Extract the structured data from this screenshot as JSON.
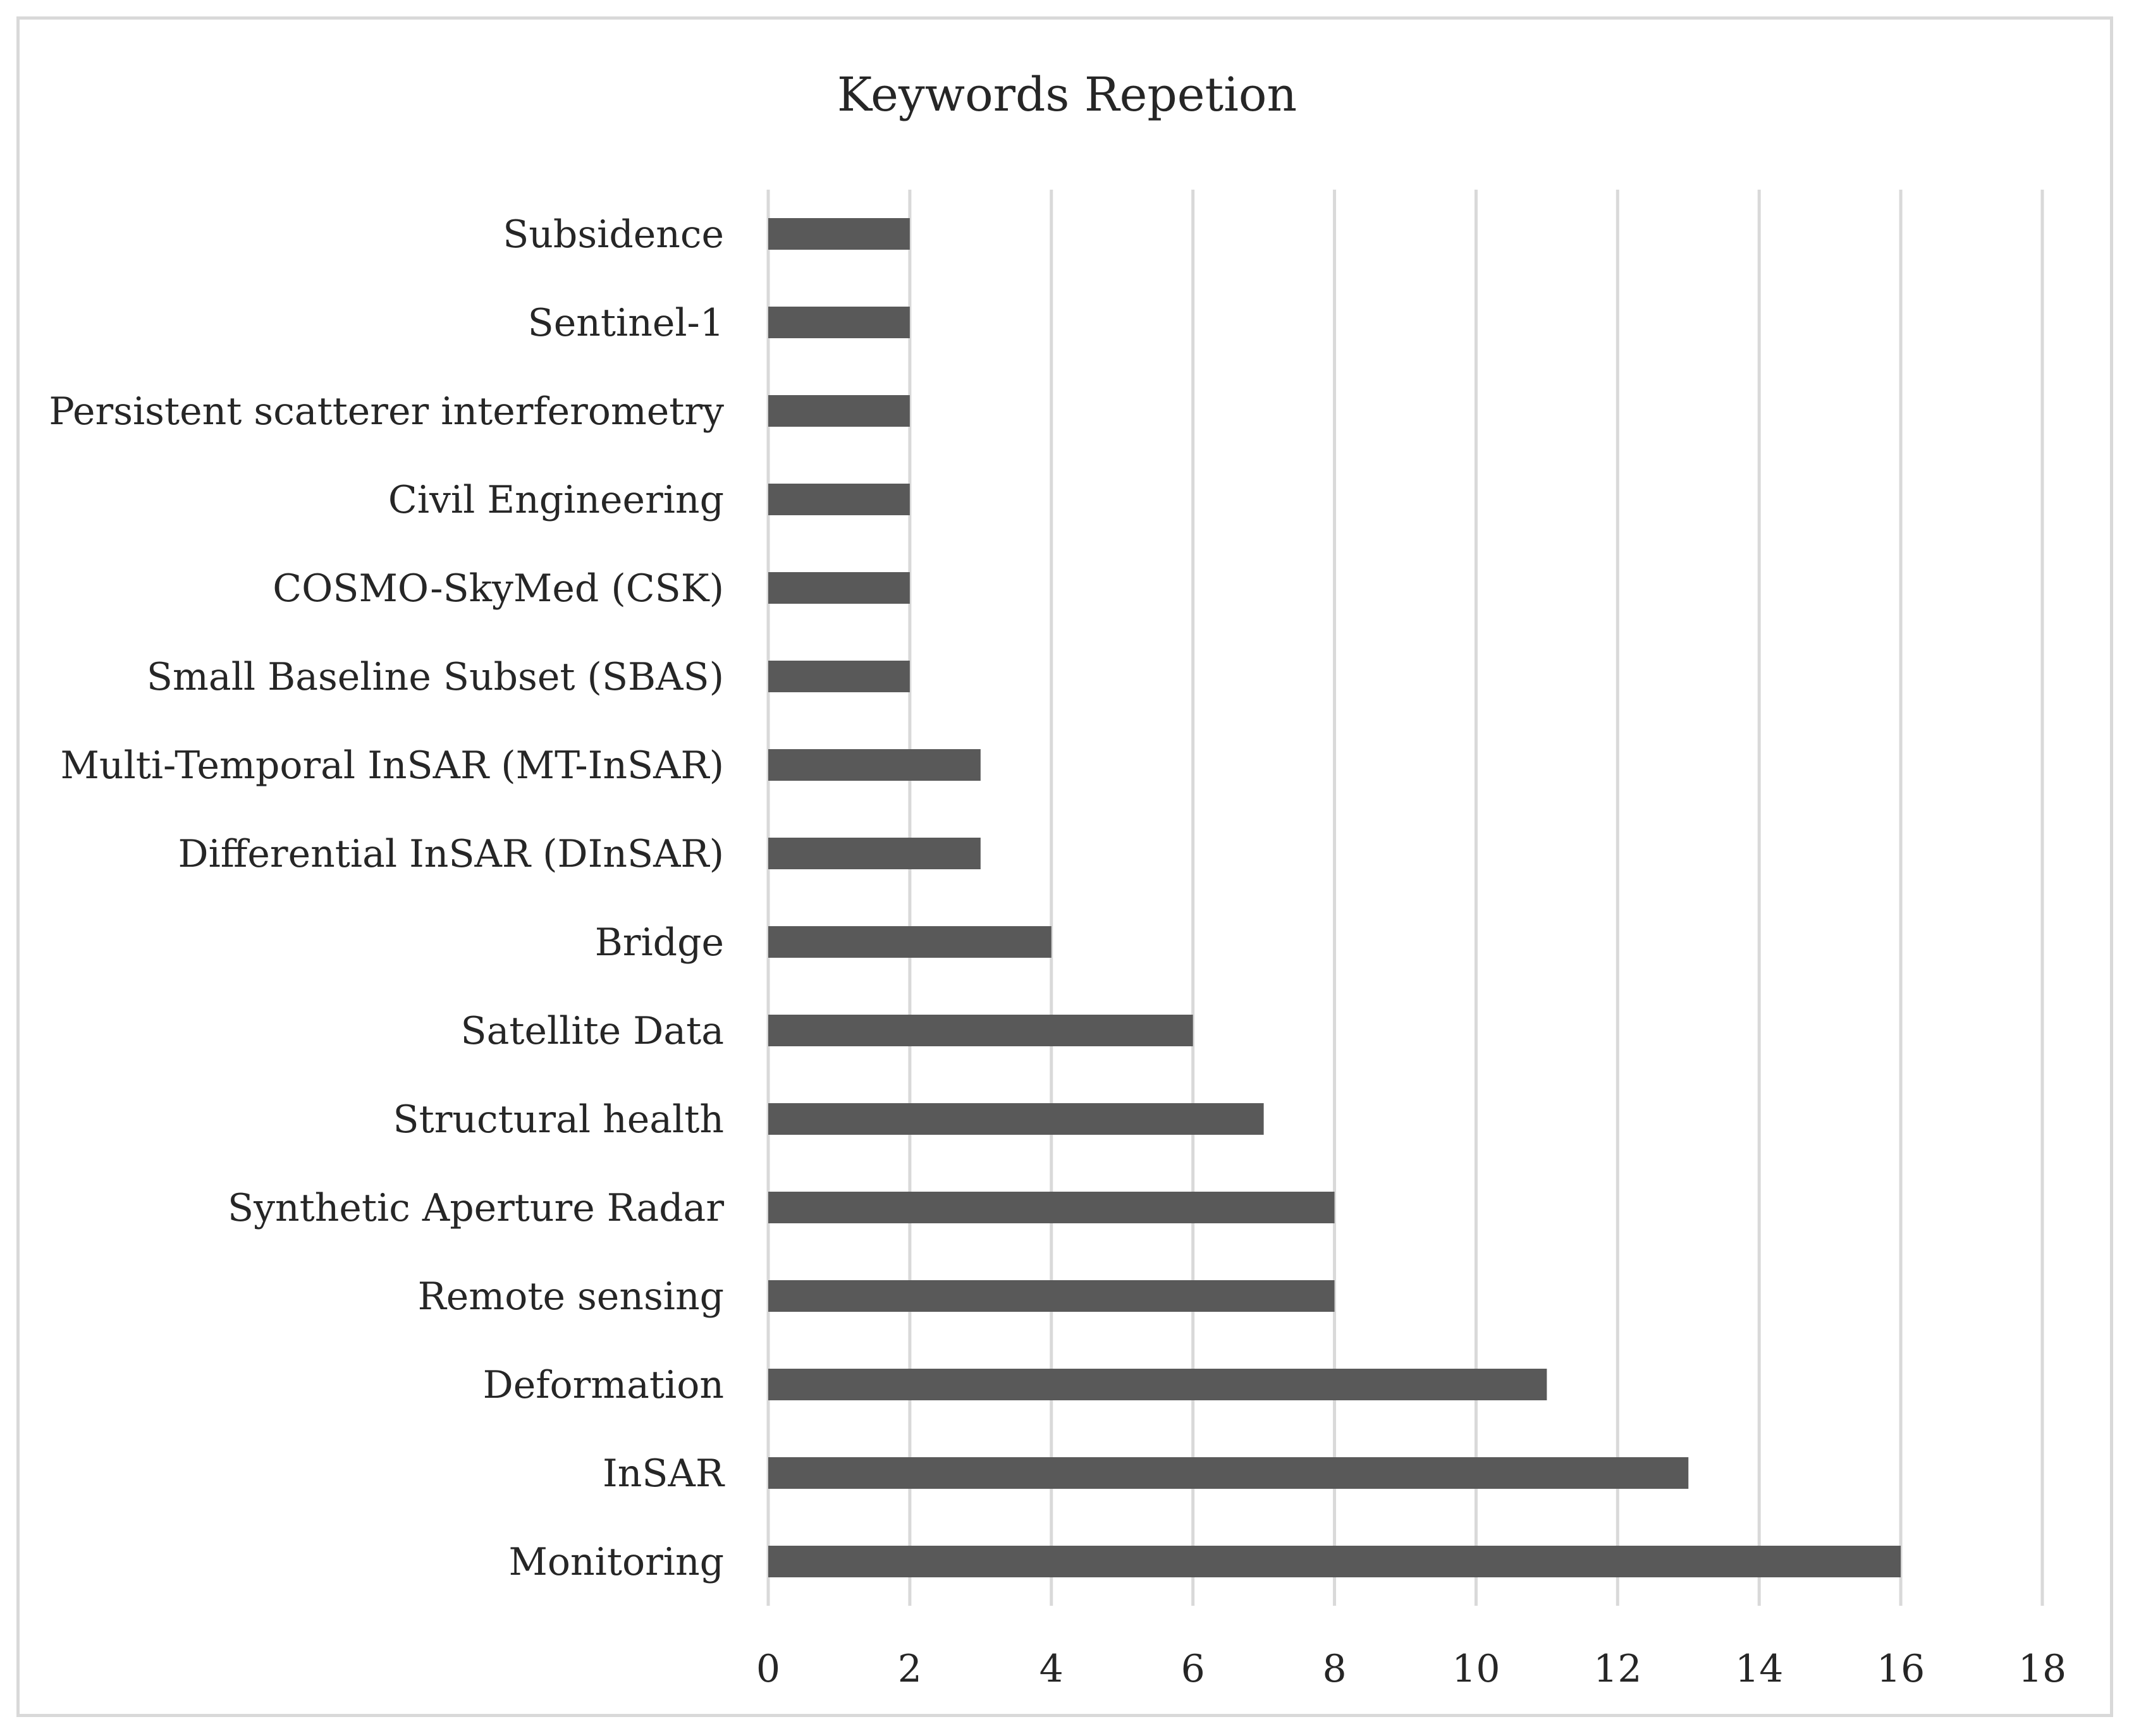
{
  "chart_data": {
    "type": "bar",
    "orientation": "horizontal",
    "title": "Keywords Repetion",
    "categories": [
      "Subsidence",
      "Sentinel-1",
      "Persistent scatterer interferometry",
      "Civil Engineering",
      "COSMO-SkyMed (CSK)",
      "Small Baseline Subset (SBAS)",
      "Multi-Temporal InSAR (MT-InSAR)",
      "Differential InSAR (DInSAR)",
      "Bridge",
      "Satellite Data",
      "Structural health",
      "Synthetic Aperture Radar",
      "Remote sensing",
      "Deformation",
      "InSAR",
      "Monitoring"
    ],
    "values": [
      2,
      2,
      2,
      2,
      2,
      2,
      3,
      3,
      4,
      6,
      7,
      8,
      8,
      11,
      13,
      16
    ],
    "xlim": [
      0,
      18
    ],
    "xticks": [
      "0",
      "2",
      "4",
      "6",
      "8",
      "10",
      "12",
      "14",
      "16",
      "18"
    ],
    "grid": "vertical",
    "legend": "none",
    "colors": {
      "bar": "#595959",
      "grid": "#d9d9d9",
      "text": "#262626"
    }
  }
}
